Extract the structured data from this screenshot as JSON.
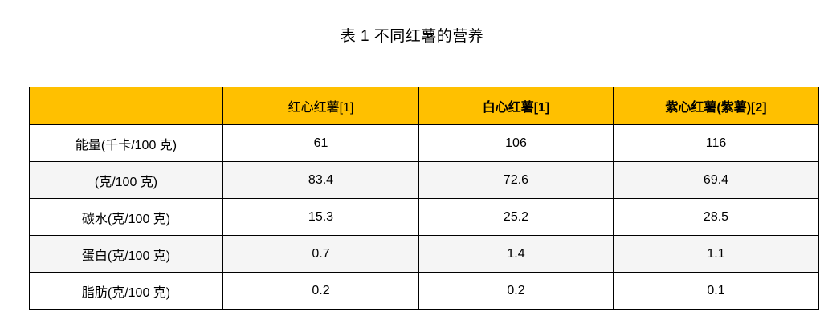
{
  "title": "表 1 不同红薯的营养",
  "chart_data": {
    "type": "table",
    "title": "表 1 不同红薯的营养",
    "columns": [
      "",
      "红心红薯[1]",
      "白心红薯[1]",
      "紫心红薯(紫薯)[2]"
    ],
    "header_bold": [
      false,
      false,
      true,
      true
    ],
    "row_labels": [
      "能量(千卡/100 克)",
      "(克/100 克)",
      "碳水(克/100 克)",
      "蛋白(克/100 克)",
      "脂肪(克/100 克)"
    ],
    "rows": [
      [
        "61",
        "106",
        "116"
      ],
      [
        "83.4",
        "72.6",
        "69.4"
      ],
      [
        "15.3",
        "25.2",
        "28.5"
      ],
      [
        "0.7",
        "1.4",
        "1.1"
      ],
      [
        "0.2",
        "0.2",
        "0.1"
      ]
    ],
    "layout": {
      "header_bg": "#FFC000",
      "shaded_row_bg": "#F5F5F5",
      "border_color": "#000000",
      "text_color": "#000000",
      "shaded_rows": [
        1,
        3
      ],
      "grid": true
    }
  }
}
